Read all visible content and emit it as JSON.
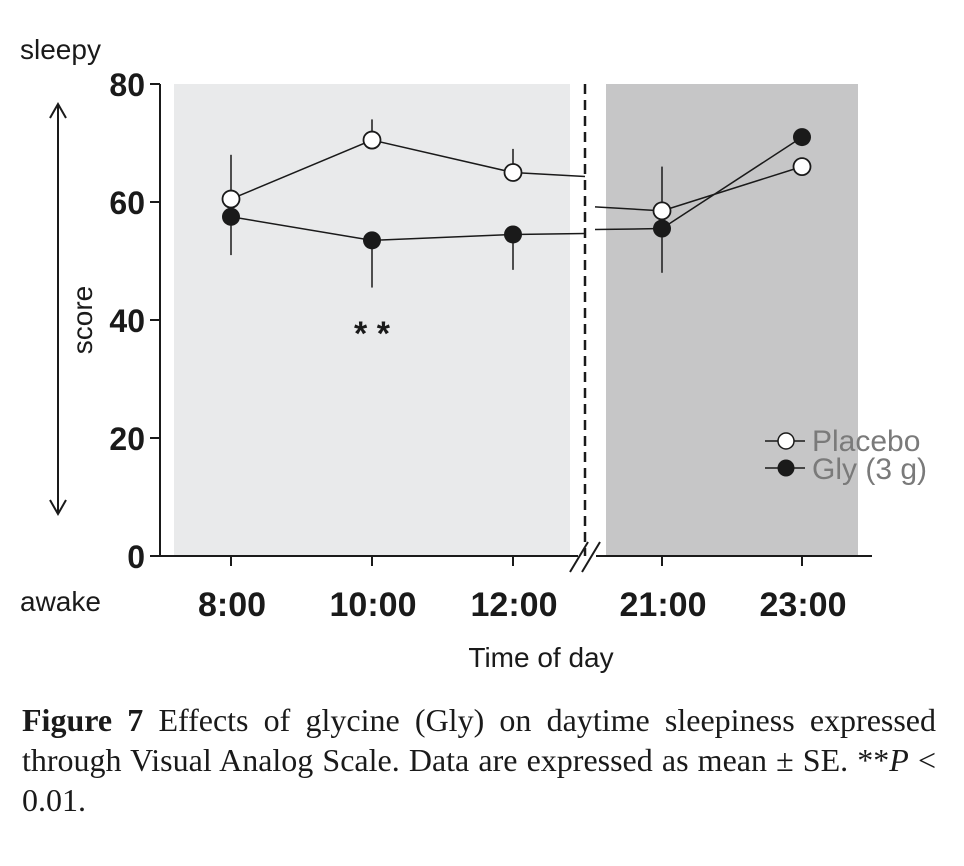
{
  "chart_data": {
    "type": "line",
    "categories": [
      "8:00",
      "10:00",
      "12:00",
      "21:00",
      "23:00"
    ],
    "series": [
      {
        "name": "Placebo",
        "marker": "open-circle",
        "values": [
          60.5,
          70.5,
          65,
          58.5,
          66
        ],
        "se": [
          7.5,
          3.5,
          4,
          7.5,
          0
        ]
      },
      {
        "name": "Gly (3 g)",
        "marker": "filled-circle",
        "values": [
          57.5,
          53.5,
          54.5,
          55.5,
          71
        ],
        "se": [
          6.5,
          8,
          6,
          7.5,
          0
        ]
      }
    ],
    "ylim": [
      0,
      80
    ],
    "yticks": [
      0,
      20,
      40,
      60,
      80
    ],
    "ylabel": "score",
    "xlabel": "Time of day",
    "top_label": "sleepy",
    "bottom_label": "awake",
    "significance": {
      "category": "10:00",
      "label": "* *"
    },
    "legend_position": "right",
    "colors": {
      "day_shade": "#e9eaeb",
      "night_shade": "#c6c6c7",
      "line": "#1a1a1a",
      "legend_text": "#7a7a7a"
    }
  },
  "caption": {
    "figure_label": "Figure 7",
    "text": " Effects of glycine (Gly) on daytime sleepiness expressed through Visual Analog Scale. Data are expressed as mean ± SE.  **",
    "p_symbol": "P",
    "p_text": " < 0.01."
  }
}
